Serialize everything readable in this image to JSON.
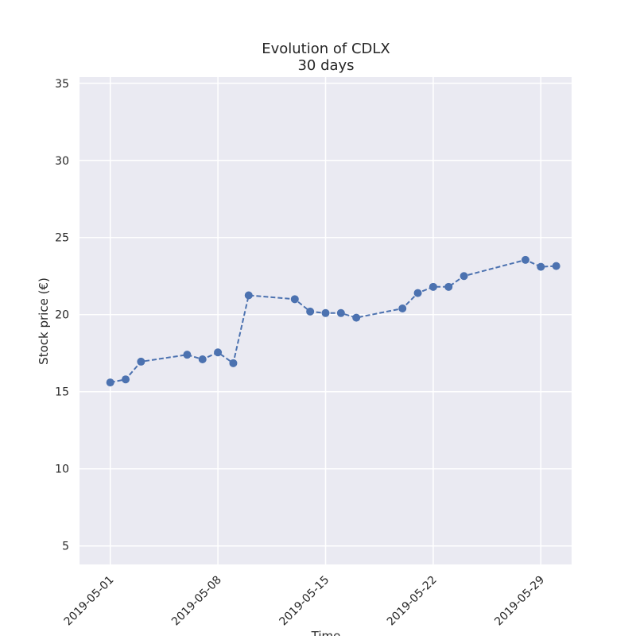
{
  "chart_data": {
    "type": "line",
    "title": "Evolution of CDLX",
    "subtitle": "30 days",
    "xlabel": "Time",
    "ylabel": "Stock price (€)",
    "x_ticks": [
      "2019-05-01",
      "2019-05-08",
      "2019-05-15",
      "2019-05-22",
      "2019-05-29"
    ],
    "y_ticks": [
      5,
      10,
      15,
      20,
      25,
      30,
      35
    ],
    "xlim": [
      "2019-04-29",
      "2019-05-31"
    ],
    "ylim": [
      3.8,
      35.4
    ],
    "grid": true,
    "line_style": "dashed",
    "marker": "circle",
    "colors": {
      "series": "#4c72b0",
      "plot_bg": "#eaeaf2",
      "grid": "#ffffff"
    },
    "series": [
      {
        "x": [
          "2019-05-01",
          "2019-05-02",
          "2019-05-03",
          "2019-05-06",
          "2019-05-07",
          "2019-05-08",
          "2019-05-09",
          "2019-05-10",
          "2019-05-13",
          "2019-05-14",
          "2019-05-15",
          "2019-05-16",
          "2019-05-17",
          "2019-05-20",
          "2019-05-21",
          "2019-05-22",
          "2019-05-23",
          "2019-05-24",
          "2019-05-28",
          "2019-05-29",
          "2019-05-30"
        ],
        "y": [
          15.6,
          15.8,
          16.95,
          17.4,
          17.1,
          17.55,
          16.85,
          21.25,
          21.0,
          20.2,
          20.1,
          20.1,
          19.8,
          20.4,
          21.4,
          21.8,
          21.8,
          22.5,
          23.55,
          23.1,
          23.15
        ]
      }
    ]
  }
}
